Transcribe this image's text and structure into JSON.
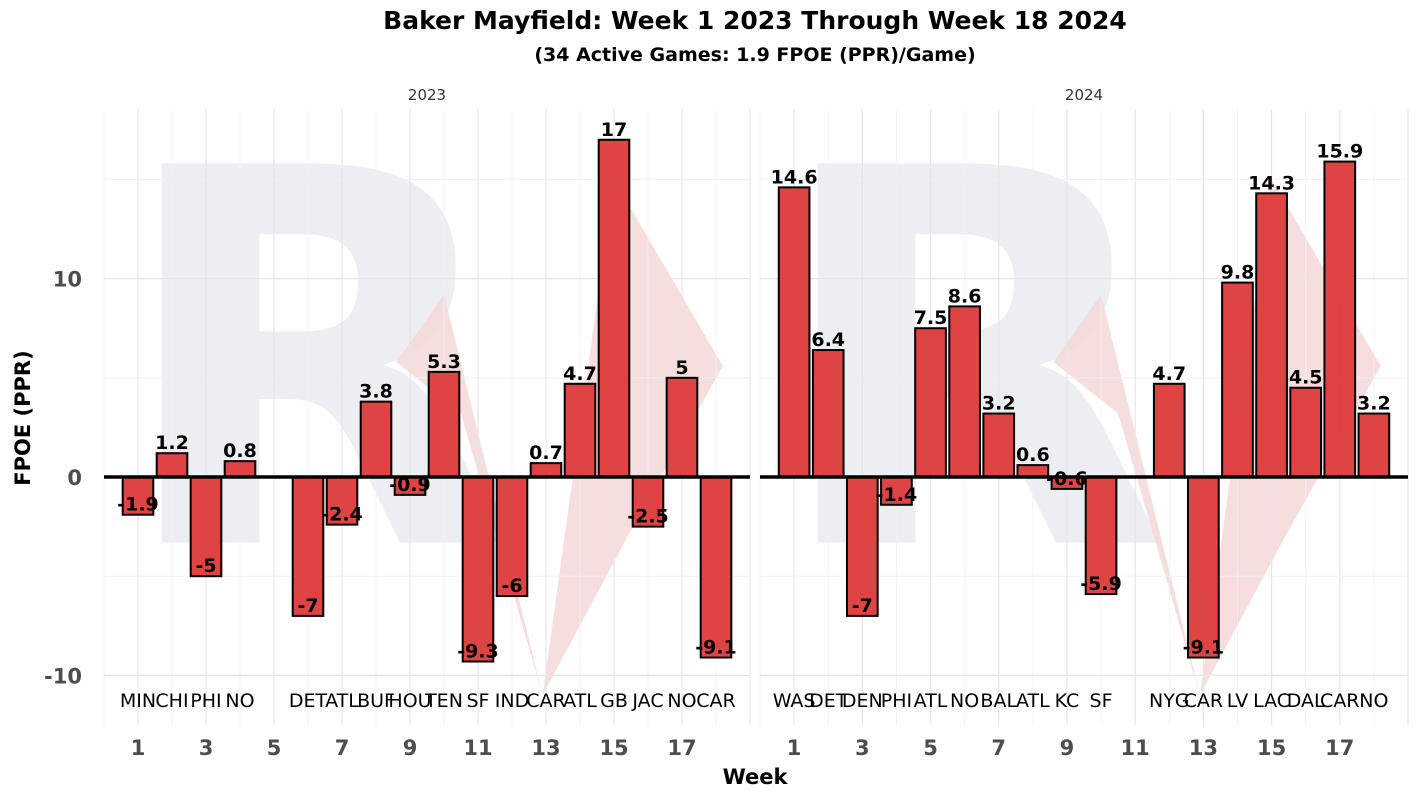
{
  "chart_data": {
    "type": "bar",
    "title": "Baker Mayfield: Week 1 2023 Through Week 18 2024",
    "subtitle": "(34 Active Games: 1.9 FPOE (PPR)/Game)",
    "xlabel": "Week",
    "ylabel": "FPOE (PPR)",
    "ylim": [
      -12.5,
      18.5
    ],
    "xlim": [
      0,
      19
    ],
    "yticks": [
      -10,
      0,
      10
    ],
    "xticks": [
      1,
      3,
      5,
      7,
      9,
      11,
      13,
      15,
      17
    ],
    "grid": true,
    "bar_color": "#dd3a3a",
    "watermark_letter": "R",
    "panels": [
      {
        "facet": "2023",
        "bars": [
          {
            "week": 1,
            "opp": "MIN",
            "value": -1.9
          },
          {
            "week": 2,
            "opp": "CHI",
            "value": 1.2
          },
          {
            "week": 3,
            "opp": "PHI",
            "value": -5
          },
          {
            "week": 4,
            "opp": "NO",
            "value": 0.8
          },
          {
            "week": 6,
            "opp": "DET",
            "value": -7
          },
          {
            "week": 7,
            "opp": "ATL",
            "value": -2.4
          },
          {
            "week": 8,
            "opp": "BUF",
            "value": 3.8
          },
          {
            "week": 9,
            "opp": "HOU",
            "value": -0.9
          },
          {
            "week": 10,
            "opp": "TEN",
            "value": 5.3
          },
          {
            "week": 11,
            "opp": "SF",
            "value": -9.3
          },
          {
            "week": 12,
            "opp": "IND",
            "value": -6
          },
          {
            "week": 13,
            "opp": "CAR",
            "value": 0.7
          },
          {
            "week": 14,
            "opp": "ATL",
            "value": 4.7
          },
          {
            "week": 15,
            "opp": "GB",
            "value": 17
          },
          {
            "week": 16,
            "opp": "JAC",
            "value": -2.5
          },
          {
            "week": 17,
            "opp": "NO",
            "value": 5
          },
          {
            "week": 18,
            "opp": "CAR",
            "value": -9.1
          }
        ]
      },
      {
        "facet": "2024",
        "bars": [
          {
            "week": 1,
            "opp": "WAS",
            "value": 14.6
          },
          {
            "week": 2,
            "opp": "DET",
            "value": 6.4
          },
          {
            "week": 3,
            "opp": "DEN",
            "value": -7
          },
          {
            "week": 4,
            "opp": "PHI",
            "value": -1.4
          },
          {
            "week": 5,
            "opp": "ATL",
            "value": 7.5
          },
          {
            "week": 6,
            "opp": "NO",
            "value": 8.6
          },
          {
            "week": 7,
            "opp": "BAL",
            "value": 3.2
          },
          {
            "week": 8,
            "opp": "ATL",
            "value": 0.6
          },
          {
            "week": 9,
            "opp": "KC",
            "value": -0.6
          },
          {
            "week": 10,
            "opp": "SF",
            "value": -5.9
          },
          {
            "week": 12,
            "opp": "NYG",
            "value": 4.7
          },
          {
            "week": 13,
            "opp": "CAR",
            "value": -9.1
          },
          {
            "week": 14,
            "opp": "LV",
            "value": 9.8
          },
          {
            "week": 15,
            "opp": "LAC",
            "value": 14.3
          },
          {
            "week": 16,
            "opp": "DAL",
            "value": 4.5
          },
          {
            "week": 17,
            "opp": "CAR",
            "value": 15.9
          },
          {
            "week": 18,
            "opp": "NO",
            "value": 3.2
          }
        ]
      }
    ]
  }
}
